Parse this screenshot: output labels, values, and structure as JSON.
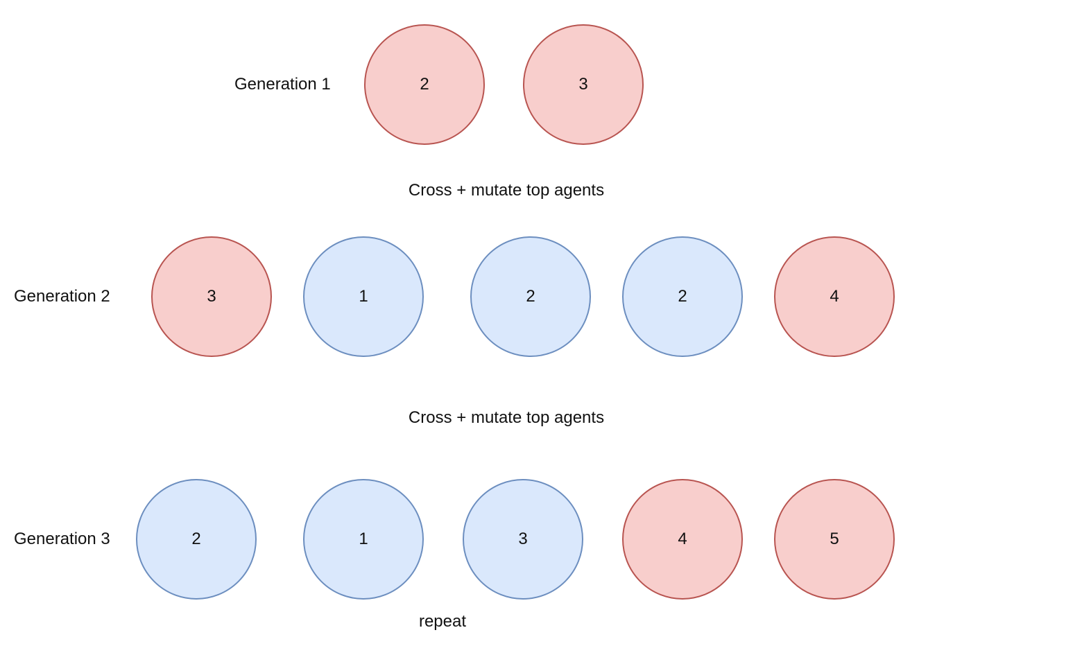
{
  "colors": {
    "kept_fill": "#f8cecc",
    "kept_stroke": "#b85450",
    "new_fill": "#dae8fc",
    "new_stroke": "#6c8ebf"
  },
  "generations": [
    {
      "label": "Generation 1",
      "agents": [
        {
          "value": "2",
          "kind": "kept"
        },
        {
          "value": "3",
          "kind": "kept"
        }
      ]
    },
    {
      "label": "Generation 2",
      "agents": [
        {
          "value": "3",
          "kind": "kept"
        },
        {
          "value": "1",
          "kind": "new"
        },
        {
          "value": "2",
          "kind": "new"
        },
        {
          "value": "2",
          "kind": "new"
        },
        {
          "value": "4",
          "kind": "kept"
        }
      ]
    },
    {
      "label": "Generation 3",
      "agents": [
        {
          "value": "2",
          "kind": "new"
        },
        {
          "value": "1",
          "kind": "new"
        },
        {
          "value": "3",
          "kind": "new"
        },
        {
          "value": "4",
          "kind": "kept"
        },
        {
          "value": "5",
          "kind": "kept"
        }
      ]
    }
  ],
  "captions": {
    "step_1": "Cross + mutate top agents",
    "step_2": "Cross + mutate top agents",
    "repeat": "repeat"
  }
}
